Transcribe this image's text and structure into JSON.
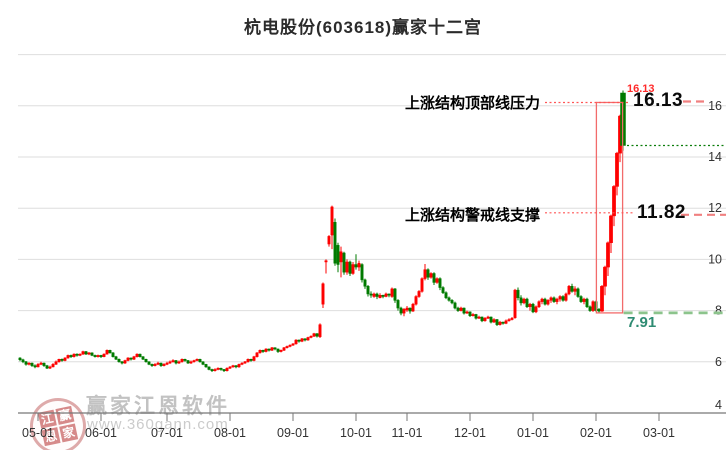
{
  "title": "杭电股份(603618)赢家十二宫",
  "watermark": {
    "brand": "赢家江恩软件",
    "url": "www.360gann.com",
    "seal_chars": [
      "江",
      "赢",
      "恩",
      "家"
    ]
  },
  "annotations": {
    "pressure_label": "上涨结构顶部线压力",
    "pressure_value": "16.13",
    "support_label": "上涨结构警戒线支撑",
    "support_value": "11.82",
    "low_value": "7.91",
    "high_marker": "16.13"
  },
  "colors": {
    "up_candle": "#fe0000",
    "down_candle": "#007b00",
    "grid": "#dedede",
    "axis": "#777777",
    "axis_text": "#333333",
    "leader_dotted": "#ff5555",
    "level_dash_red": "#f08080",
    "box_red": "#f26b6b",
    "low_dash_green": "#8cc48c",
    "close_dot_green": "#0a7d0a",
    "high_marker_red": "#ff2a2a",
    "low_label_teal": "#2e8b72"
  },
  "chart_data": {
    "type": "candlestick",
    "title": "杭电股份(603618)赢家十二宫",
    "x_ticks": [
      "05-01",
      "06-01",
      "07-01",
      "08-01",
      "09-01",
      "10-01",
      "11-01",
      "12-01",
      "01-01",
      "02-01",
      "03-01"
    ],
    "x_tick_indices": [
      6,
      27,
      49,
      70,
      91,
      112,
      129,
      150,
      171,
      192,
      213
    ],
    "y_ticks": [
      16,
      14,
      12,
      10,
      8,
      6,
      4
    ],
    "ylim": [
      4,
      18
    ],
    "grid": true,
    "levels": {
      "pressure_line": 16.13,
      "support_line": 11.82,
      "low_line": 7.91,
      "last_close_line": 14.45
    },
    "box": {
      "start_index": 193,
      "end_index": 200,
      "top": 16.13,
      "bottom": 7.91
    },
    "candles": [
      [
        6.15,
        6.18,
        6.02,
        6.08
      ],
      [
        6.08,
        6.12,
        5.95,
        6.0
      ],
      [
        6.0,
        6.03,
        5.85,
        5.9
      ],
      [
        5.9,
        5.98,
        5.86,
        5.95
      ],
      [
        5.95,
        5.97,
        5.8,
        5.85
      ],
      [
        5.85,
        5.9,
        5.75,
        5.8
      ],
      [
        5.8,
        5.95,
        5.78,
        5.9
      ],
      [
        5.9,
        6.0,
        5.87,
        5.95
      ],
      [
        5.95,
        5.97,
        5.8,
        5.85
      ],
      [
        5.85,
        5.88,
        5.72,
        5.75
      ],
      [
        5.75,
        5.85,
        5.72,
        5.8
      ],
      [
        5.8,
        5.95,
        5.78,
        5.9
      ],
      [
        5.9,
        6.05,
        5.88,
        6.0
      ],
      [
        6.0,
        6.12,
        5.97,
        6.1
      ],
      [
        6.1,
        6.13,
        6.0,
        6.05
      ],
      [
        6.05,
        6.18,
        6.02,
        6.15
      ],
      [
        6.15,
        6.28,
        6.12,
        6.25
      ],
      [
        6.25,
        6.28,
        6.15,
        6.2
      ],
      [
        6.2,
        6.33,
        6.17,
        6.3
      ],
      [
        6.3,
        6.33,
        6.2,
        6.25
      ],
      [
        6.25,
        6.33,
        6.22,
        6.3
      ],
      [
        6.3,
        6.43,
        6.27,
        6.4
      ],
      [
        6.4,
        6.42,
        6.27,
        6.3
      ],
      [
        6.3,
        6.38,
        6.26,
        6.35
      ],
      [
        6.35,
        6.37,
        6.22,
        6.25
      ],
      [
        6.25,
        6.28,
        6.17,
        6.2
      ],
      [
        6.2,
        6.28,
        6.17,
        6.25
      ],
      [
        6.25,
        6.27,
        6.15,
        6.2
      ],
      [
        6.2,
        6.33,
        6.18,
        6.3
      ],
      [
        6.3,
        6.48,
        6.28,
        6.45
      ],
      [
        6.45,
        6.47,
        6.32,
        6.35
      ],
      [
        6.35,
        6.38,
        6.17,
        6.2
      ],
      [
        6.2,
        6.23,
        6.07,
        6.1
      ],
      [
        6.1,
        6.13,
        5.97,
        6.0
      ],
      [
        6.0,
        6.03,
        5.9,
        5.95
      ],
      [
        5.95,
        6.08,
        5.92,
        6.05
      ],
      [
        6.05,
        6.18,
        6.02,
        6.15
      ],
      [
        6.15,
        6.17,
        6.05,
        6.1
      ],
      [
        6.1,
        6.23,
        6.07,
        6.2
      ],
      [
        6.2,
        6.33,
        6.17,
        6.3
      ],
      [
        6.3,
        6.32,
        6.17,
        6.2
      ],
      [
        6.2,
        6.22,
        6.07,
        6.1
      ],
      [
        6.1,
        6.12,
        5.97,
        6.0
      ],
      [
        6.0,
        6.02,
        5.87,
        5.9
      ],
      [
        5.9,
        5.93,
        5.8,
        5.85
      ],
      [
        5.85,
        5.95,
        5.82,
        5.9
      ],
      [
        5.9,
        6.0,
        5.87,
        5.95
      ],
      [
        5.95,
        5.97,
        5.8,
        5.85
      ],
      [
        5.85,
        5.95,
        5.82,
        5.9
      ],
      [
        5.9,
        6.0,
        5.87,
        5.95
      ],
      [
        5.95,
        6.05,
        5.92,
        6.0
      ],
      [
        6.0,
        6.1,
        5.97,
        6.05
      ],
      [
        6.05,
        6.07,
        5.9,
        5.95
      ],
      [
        5.95,
        6.05,
        5.92,
        6.0
      ],
      [
        6.0,
        6.13,
        5.97,
        6.1
      ],
      [
        6.1,
        6.12,
        6.0,
        6.05
      ],
      [
        6.05,
        6.07,
        5.92,
        5.95
      ],
      [
        5.95,
        6.05,
        5.92,
        6.0
      ],
      [
        6.0,
        6.08,
        5.97,
        6.05
      ],
      [
        6.05,
        6.13,
        6.02,
        6.1
      ],
      [
        6.1,
        6.12,
        5.97,
        6.0
      ],
      [
        6.0,
        6.02,
        5.87,
        5.9
      ],
      [
        5.9,
        5.92,
        5.77,
        5.8
      ],
      [
        5.8,
        5.82,
        5.67,
        5.7
      ],
      [
        5.7,
        5.73,
        5.6,
        5.65
      ],
      [
        5.65,
        5.75,
        5.62,
        5.7
      ],
      [
        5.7,
        5.78,
        5.67,
        5.75
      ],
      [
        5.75,
        5.77,
        5.65,
        5.7
      ],
      [
        5.7,
        5.72,
        5.6,
        5.65
      ],
      [
        5.65,
        5.78,
        5.62,
        5.75
      ],
      [
        5.75,
        5.83,
        5.72,
        5.8
      ],
      [
        5.8,
        5.88,
        5.77,
        5.85
      ],
      [
        5.85,
        5.87,
        5.75,
        5.8
      ],
      [
        5.8,
        5.93,
        5.77,
        5.9
      ],
      [
        5.9,
        5.98,
        5.87,
        5.95
      ],
      [
        5.95,
        6.03,
        5.92,
        6.0
      ],
      [
        6.0,
        6.13,
        5.97,
        6.1
      ],
      [
        6.1,
        6.12,
        6.0,
        6.05
      ],
      [
        6.05,
        6.23,
        6.02,
        6.2
      ],
      [
        6.2,
        6.38,
        6.17,
        6.35
      ],
      [
        6.35,
        6.48,
        6.32,
        6.45
      ],
      [
        6.45,
        6.47,
        6.35,
        6.4
      ],
      [
        6.4,
        6.53,
        6.37,
        6.5
      ],
      [
        6.5,
        6.52,
        6.4,
        6.45
      ],
      [
        6.45,
        6.58,
        6.42,
        6.55
      ],
      [
        6.55,
        6.57,
        6.45,
        6.5
      ],
      [
        6.5,
        6.52,
        6.35,
        6.4
      ],
      [
        6.4,
        6.48,
        6.37,
        6.45
      ],
      [
        6.45,
        6.58,
        6.42,
        6.55
      ],
      [
        6.55,
        6.63,
        6.52,
        6.6
      ],
      [
        6.6,
        6.68,
        6.57,
        6.65
      ],
      [
        6.65,
        6.73,
        6.62,
        6.7
      ],
      [
        6.7,
        6.88,
        6.67,
        6.85
      ],
      [
        6.85,
        6.87,
        6.75,
        6.8
      ],
      [
        6.8,
        6.93,
        6.77,
        6.9
      ],
      [
        6.9,
        6.92,
        6.8,
        6.85
      ],
      [
        6.85,
        6.98,
        6.82,
        6.95
      ],
      [
        6.95,
        7.03,
        6.92,
        7.0
      ],
      [
        7.0,
        7.13,
        6.97,
        7.1
      ],
      [
        7.1,
        7.12,
        6.95,
        7.0
      ],
      [
        6.98,
        7.5,
        6.93,
        7.45
      ],
      [
        8.25,
        9.1,
        8.1,
        9.05
      ],
      [
        9.9,
        10.0,
        9.45,
        9.95
      ],
      [
        10.6,
        10.95,
        10.5,
        10.9
      ],
      [
        10.95,
        12.1,
        10.4,
        12.05
      ],
      [
        11.45,
        11.6,
        9.75,
        9.85
      ],
      [
        10.55,
        10.65,
        9.5,
        9.8
      ],
      [
        9.9,
        10.5,
        9.3,
        10.3
      ],
      [
        10.25,
        10.3,
        9.4,
        9.5
      ],
      [
        9.5,
        10.0,
        9.4,
        9.9
      ],
      [
        9.9,
        9.95,
        9.35,
        9.45
      ],
      [
        9.45,
        9.9,
        9.4,
        9.8
      ],
      [
        9.8,
        10.2,
        9.6,
        9.7
      ],
      [
        9.7,
        9.95,
        9.55,
        9.85
      ],
      [
        9.8,
        9.85,
        9.1,
        9.2
      ],
      [
        9.2,
        9.25,
        8.85,
        8.95
      ],
      [
        8.95,
        9.0,
        8.55,
        8.65
      ],
      [
        8.65,
        8.75,
        8.5,
        8.6
      ],
      [
        8.55,
        8.7,
        8.5,
        8.65
      ],
      [
        8.65,
        8.7,
        8.45,
        8.55
      ],
      [
        8.5,
        8.68,
        8.48,
        8.6
      ],
      [
        8.6,
        8.62,
        8.48,
        8.55
      ],
      [
        8.55,
        8.7,
        8.52,
        8.65
      ],
      [
        8.65,
        8.67,
        8.52,
        8.6
      ],
      [
        8.55,
        8.9,
        8.5,
        8.85
      ],
      [
        8.85,
        8.88,
        8.3,
        8.4
      ],
      [
        8.4,
        8.45,
        8.0,
        8.1
      ],
      [
        8.1,
        8.15,
        7.82,
        7.9
      ],
      [
        7.9,
        8.1,
        7.78,
        8.05
      ],
      [
        8.02,
        8.18,
        7.95,
        8.1
      ],
      [
        8.1,
        8.12,
        7.88,
        7.98
      ],
      [
        7.98,
        8.3,
        7.95,
        8.25
      ],
      [
        8.25,
        8.6,
        8.2,
        8.55
      ],
      [
        8.55,
        8.8,
        8.5,
        8.75
      ],
      [
        8.75,
        9.3,
        8.7,
        9.25
      ],
      [
        9.25,
        9.82,
        9.18,
        9.6
      ],
      [
        9.6,
        9.65,
        9.2,
        9.3
      ],
      [
        9.3,
        9.5,
        9.25,
        9.45
      ],
      [
        9.45,
        9.5,
        9.0,
        9.1
      ],
      [
        9.1,
        9.3,
        9.05,
        9.25
      ],
      [
        9.25,
        9.3,
        8.8,
        8.9
      ],
      [
        8.9,
        8.95,
        8.65,
        8.7
      ],
      [
        8.7,
        8.75,
        8.45,
        8.5
      ],
      [
        8.5,
        8.55,
        8.35,
        8.4
      ],
      [
        8.4,
        8.45,
        8.25,
        8.3
      ],
      [
        8.3,
        8.35,
        8.05,
        8.1
      ],
      [
        8.1,
        8.15,
        7.95,
        8.0
      ],
      [
        8.0,
        8.15,
        7.97,
        8.1
      ],
      [
        8.1,
        8.12,
        7.85,
        7.9
      ],
      [
        7.9,
        8.0,
        7.87,
        7.95
      ],
      [
        7.95,
        7.97,
        7.75,
        7.8
      ],
      [
        7.8,
        7.9,
        7.77,
        7.85
      ],
      [
        7.85,
        7.87,
        7.65,
        7.7
      ],
      [
        7.7,
        7.8,
        7.67,
        7.75
      ],
      [
        7.75,
        7.77,
        7.55,
        7.6
      ],
      [
        7.6,
        7.75,
        7.57,
        7.7
      ],
      [
        7.7,
        7.8,
        7.67,
        7.75
      ],
      [
        7.75,
        7.77,
        7.5,
        7.55
      ],
      [
        7.55,
        7.7,
        7.52,
        7.65
      ],
      [
        7.65,
        7.67,
        7.4,
        7.45
      ],
      [
        7.45,
        7.6,
        7.42,
        7.55
      ],
      [
        7.55,
        7.57,
        7.45,
        7.5
      ],
      [
        7.5,
        7.65,
        7.47,
        7.6
      ],
      [
        7.6,
        7.7,
        7.57,
        7.65
      ],
      [
        7.65,
        7.75,
        7.62,
        7.7
      ],
      [
        7.72,
        8.85,
        7.68,
        8.8
      ],
      [
        8.8,
        8.9,
        8.4,
        8.5
      ],
      [
        8.5,
        8.6,
        8.2,
        8.3
      ],
      [
        8.3,
        8.5,
        8.25,
        8.45
      ],
      [
        8.45,
        8.5,
        8.1,
        8.15
      ],
      [
        8.15,
        8.3,
        8.0,
        8.25
      ],
      [
        8.25,
        8.3,
        7.9,
        7.95
      ],
      [
        7.95,
        8.2,
        7.9,
        8.15
      ],
      [
        8.15,
        8.4,
        8.1,
        8.35
      ],
      [
        8.35,
        8.5,
        8.25,
        8.45
      ],
      [
        8.45,
        8.5,
        8.2,
        8.25
      ],
      [
        8.25,
        8.45,
        8.2,
        8.4
      ],
      [
        8.4,
        8.55,
        8.3,
        8.5
      ],
      [
        8.5,
        8.55,
        8.3,
        8.35
      ],
      [
        8.35,
        8.5,
        8.25,
        8.45
      ],
      [
        8.45,
        8.6,
        8.35,
        8.55
      ],
      [
        8.55,
        8.6,
        8.35,
        8.4
      ],
      [
        8.4,
        8.7,
        8.35,
        8.65
      ],
      [
        8.65,
        9.0,
        8.6,
        8.95
      ],
      [
        8.95,
        9.05,
        8.7,
        8.75
      ],
      [
        8.75,
        8.95,
        8.6,
        8.85
      ],
      [
        8.85,
        8.9,
        8.5,
        8.55
      ],
      [
        8.55,
        8.6,
        8.3,
        8.35
      ],
      [
        8.35,
        8.5,
        8.25,
        8.45
      ],
      [
        8.45,
        8.5,
        8.1,
        8.15
      ],
      [
        8.15,
        8.2,
        7.95,
        8.0
      ],
      [
        8.0,
        8.4,
        7.95,
        8.35
      ],
      [
        8.35,
        8.4,
        7.95,
        8.0
      ],
      [
        8.05,
        8.1,
        7.91,
        7.98
      ],
      [
        7.98,
        9.0,
        7.95,
        8.95
      ],
      [
        8.95,
        9.75,
        8.6,
        9.7
      ],
      [
        9.7,
        10.7,
        9.35,
        10.65
      ],
      [
        10.65,
        11.75,
        10.25,
        11.7
      ],
      [
        11.7,
        12.9,
        11.3,
        12.85
      ],
      [
        12.85,
        14.2,
        12.5,
        14.15
      ],
      [
        14.15,
        15.65,
        13.8,
        15.6
      ],
      [
        16.5,
        16.6,
        14.25,
        14.45
      ]
    ]
  }
}
